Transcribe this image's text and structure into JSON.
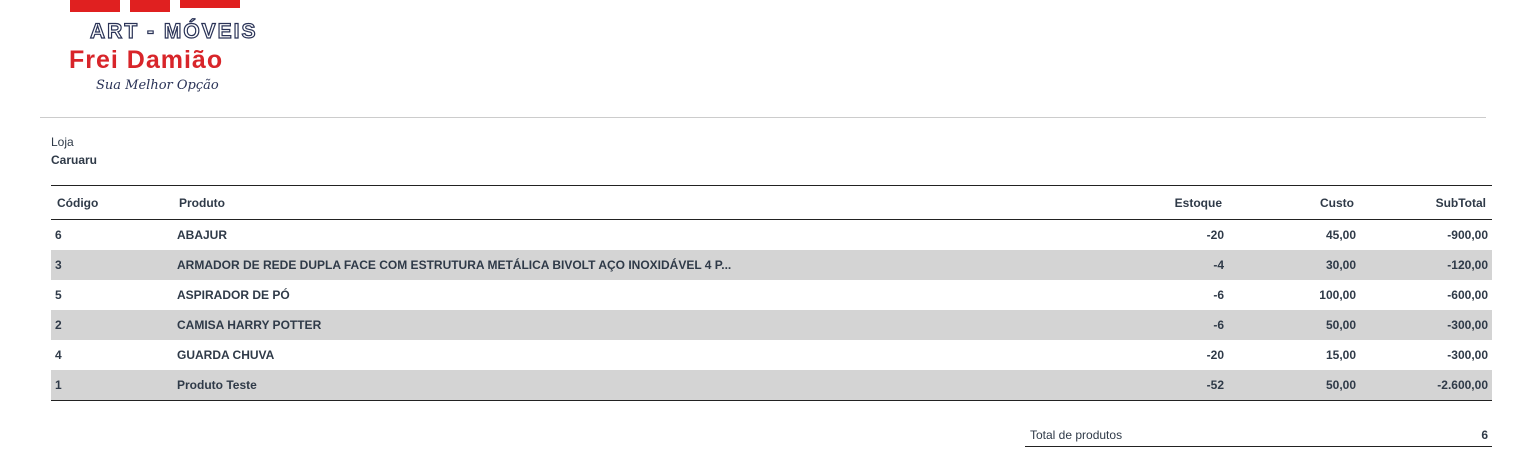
{
  "logo": {
    "line1": "ART - MÓVEIS",
    "line2": "Frei Damião",
    "line3": "Sua Melhor Opção",
    "brand_red": "#e02020"
  },
  "store": {
    "label": "Loja",
    "name": "Caruaru"
  },
  "table": {
    "headers": [
      "Código",
      "Produto",
      "Estoque",
      "Custo",
      "SubTotal"
    ],
    "rows": [
      [
        "6",
        "ABAJUR",
        "-20",
        "45,00",
        "-900,00"
      ],
      [
        "3",
        "ARMADOR DE REDE DUPLA FACE COM ESTRUTURA METÁLICA BIVOLT AÇO INOXIDÁVEL 4 P...",
        "-4",
        "30,00",
        "-120,00"
      ],
      [
        "5",
        "ASPIRADOR DE PÓ",
        "-6",
        "100,00",
        "-600,00"
      ],
      [
        "2",
        "CAMISA HARRY POTTER",
        "-6",
        "50,00",
        "-300,00"
      ],
      [
        "4",
        "GUARDA CHUVA",
        "-20",
        "15,00",
        "-300,00"
      ],
      [
        "1",
        "Produto Teste",
        "-52",
        "50,00",
        "-2.600,00"
      ]
    ]
  },
  "summary": {
    "label": "Total de produtos",
    "value": "6"
  }
}
